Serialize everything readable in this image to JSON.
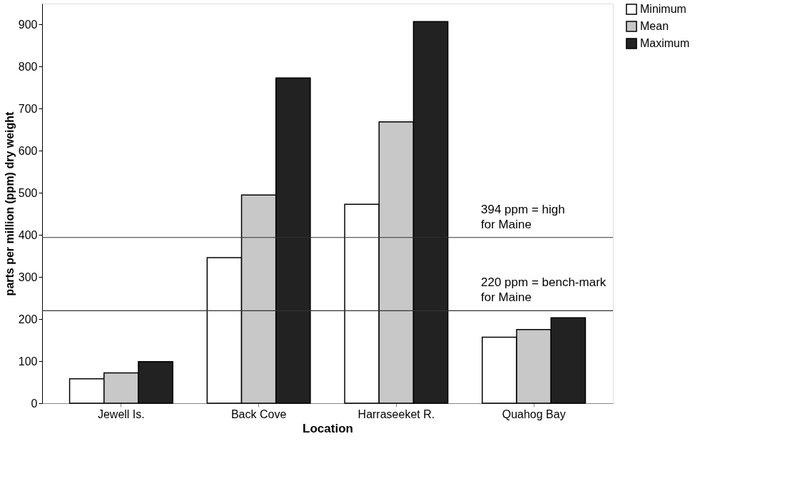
{
  "chart_data": {
    "type": "bar",
    "xlabel": "Location",
    "ylabel": "parts per million (ppm) dry weight",
    "categories": [
      "Jewell Is.",
      "Back Cove",
      "Harraseeket R.",
      "Quahog Bay"
    ],
    "series": [
      {
        "name": "Minimum",
        "color": "#ffffff",
        "values": [
          58,
          346,
          473,
          157
        ]
      },
      {
        "name": "Mean",
        "color": "#c8c8c8",
        "values": [
          72,
          495,
          669,
          175
        ]
      },
      {
        "name": "Maximum",
        "color": "#222222",
        "values": [
          99,
          773,
          907,
          203
        ]
      }
    ],
    "ylim": [
      0,
      950
    ],
    "yticks": [
      0,
      100,
      200,
      300,
      400,
      500,
      600,
      700,
      800,
      900
    ],
    "grid": false,
    "legend": "right",
    "ref_lines": [
      {
        "axis": "y",
        "value": 394,
        "label": "394 ppm = high for Maine",
        "color": "#333333"
      },
      {
        "axis": "y",
        "value": 220,
        "label": "220 ppm = bench-mark for Maine",
        "color": "#333333"
      }
    ]
  }
}
